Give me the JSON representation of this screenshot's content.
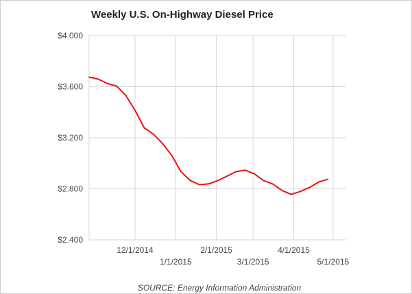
{
  "chart_data": {
    "type": "line",
    "title": "Weekly U.S. On-Highway Diesel Price",
    "source": "SOURCE: Energy Information Administration",
    "xlabel": "",
    "ylabel": "",
    "ylim": [
      2.4,
      4.0
    ],
    "y_ticks": [
      {
        "value": 4.0,
        "label": "$4.000"
      },
      {
        "value": 3.6,
        "label": "$3.600"
      },
      {
        "value": 3.2,
        "label": "$3.200"
      },
      {
        "value": 2.8,
        "label": "$2.800"
      },
      {
        "value": 2.4,
        "label": "$2.400"
      }
    ],
    "x_start": "2014-10-27",
    "x_end": "2015-05-11",
    "x_ticks": [
      {
        "date": "2014-12-01",
        "label": "12/1/2014",
        "row": 1
      },
      {
        "date": "2015-01-01",
        "label": "1/1/2015",
        "row": 2
      },
      {
        "date": "2015-02-01",
        "label": "2/1/2015",
        "row": 1
      },
      {
        "date": "2015-03-01",
        "label": "3/1/2015",
        "row": 2
      },
      {
        "date": "2015-04-01",
        "label": "4/1/2015",
        "row": 1
      },
      {
        "date": "2015-05-01",
        "label": "5/1/2015",
        "row": 2
      }
    ],
    "series": [
      {
        "name": "Diesel Price",
        "color": "#ee1111",
        "points": [
          {
            "date": "2014-10-27",
            "value": 3.675
          },
          {
            "date": "2014-11-03",
            "value": 3.659
          },
          {
            "date": "2014-11-10",
            "value": 3.624
          },
          {
            "date": "2014-11-17",
            "value": 3.605
          },
          {
            "date": "2014-11-24",
            "value": 3.53
          },
          {
            "date": "2014-12-01",
            "value": 3.415
          },
          {
            "date": "2014-12-08",
            "value": 3.278
          },
          {
            "date": "2014-12-15",
            "value": 3.228
          },
          {
            "date": "2014-12-22",
            "value": 3.155
          },
          {
            "date": "2014-12-29",
            "value": 3.061
          },
          {
            "date": "2015-01-05",
            "value": 2.935
          },
          {
            "date": "2015-01-12",
            "value": 2.866
          },
          {
            "date": "2015-01-19",
            "value": 2.832
          },
          {
            "date": "2015-01-26",
            "value": 2.838
          },
          {
            "date": "2015-02-02",
            "value": 2.864
          },
          {
            "date": "2015-02-09",
            "value": 2.898
          },
          {
            "date": "2015-02-16",
            "value": 2.935
          },
          {
            "date": "2015-02-23",
            "value": 2.946
          },
          {
            "date": "2015-03-02",
            "value": 2.917
          },
          {
            "date": "2015-03-09",
            "value": 2.864
          },
          {
            "date": "2015-03-16",
            "value": 2.838
          },
          {
            "date": "2015-03-23",
            "value": 2.787
          },
          {
            "date": "2015-03-30",
            "value": 2.756
          },
          {
            "date": "2015-04-06",
            "value": 2.779
          },
          {
            "date": "2015-04-13",
            "value": 2.81
          },
          {
            "date": "2015-04-20",
            "value": 2.853
          },
          {
            "date": "2015-04-27",
            "value": 2.874
          }
        ]
      }
    ]
  }
}
